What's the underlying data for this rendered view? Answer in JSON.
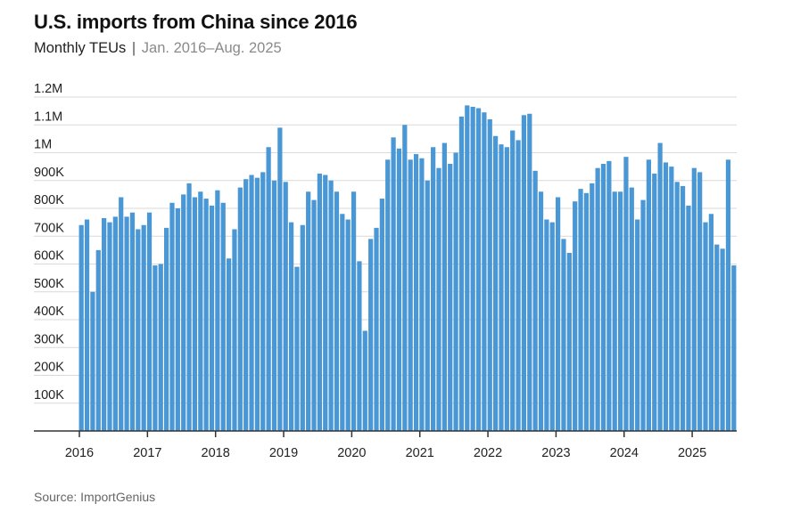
{
  "header": {
    "title": "U.S. imports from China since 2016",
    "subtitle_main": "Monthly TEUs",
    "subtitle_sep": "|",
    "subtitle_range": "Jan. 2016–Aug. 2025"
  },
  "footer": {
    "source": "Source: ImportGenius"
  },
  "colors": {
    "bar": "#4a97d6",
    "grid": "#d9d9d9",
    "axis": "#333333"
  },
  "chart_data": {
    "type": "bar",
    "title": "U.S. imports from China since 2016",
    "subtitle": "Monthly TEUs | Jan. 2016–Aug. 2025",
    "xlabel": "",
    "ylabel": "",
    "ylim": [
      0,
      1200000
    ],
    "grid": true,
    "y_ticks": [
      100000,
      200000,
      300000,
      400000,
      500000,
      600000,
      700000,
      800000,
      900000,
      1000000,
      1100000,
      1200000
    ],
    "y_tick_labels": [
      "100K",
      "200K",
      "300K",
      "400K",
      "500K",
      "600K",
      "700K",
      "800K",
      "900K",
      "1M",
      "1.1M",
      "1.2M"
    ],
    "x_tick_labels": [
      "2016",
      "2017",
      "2018",
      "2019",
      "2020",
      "2021",
      "2022",
      "2023",
      "2024",
      "2025"
    ],
    "start": "2016-01",
    "end": "2025-08",
    "series": [
      {
        "values": [
          740000,
          760000,
          500000,
          650000,
          765000,
          750000,
          770000,
          840000,
          770000,
          785000,
          725000,
          740000,
          785000,
          595000,
          600000,
          730000,
          820000,
          800000,
          850000,
          890000,
          840000,
          860000,
          835000,
          810000,
          865000,
          820000,
          620000,
          725000,
          875000,
          905000,
          920000,
          910000,
          930000,
          1020000,
          900000,
          1090000,
          895000,
          750000,
          590000,
          740000,
          860000,
          830000,
          925000,
          920000,
          900000,
          860000,
          780000,
          760000,
          860000,
          610000,
          360000,
          690000,
          730000,
          835000,
          975000,
          1055000,
          1015000,
          1100000,
          975000,
          995000,
          980000,
          900000,
          1020000,
          945000,
          1035000,
          960000,
          1000000,
          1130000,
          1170000,
          1165000,
          1160000,
          1145000,
          1120000,
          1060000,
          1030000,
          1020000,
          1080000,
          1045000,
          1135000,
          1140000,
          935000,
          860000,
          760000,
          750000,
          840000,
          690000,
          640000,
          825000,
          870000,
          855000,
          890000,
          945000,
          960000,
          970000,
          860000,
          860000,
          985000,
          875000,
          760000,
          830000,
          975000,
          925000,
          1035000,
          965000,
          950000,
          895000,
          880000,
          810000,
          945000,
          930000,
          750000,
          780000,
          670000,
          655000,
          975000,
          595000
        ]
      }
    ]
  }
}
